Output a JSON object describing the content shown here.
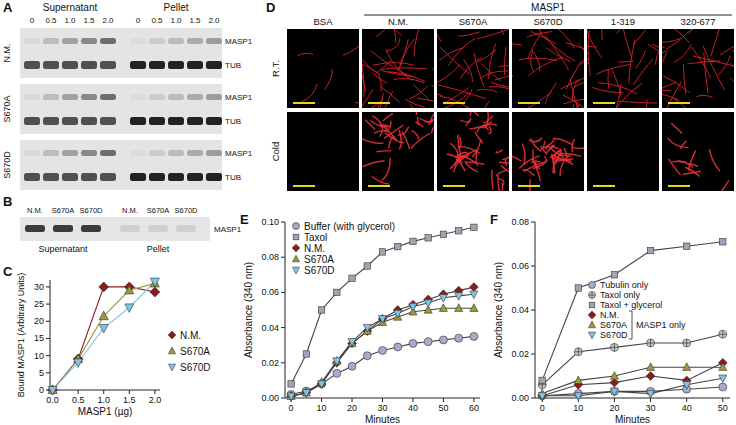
{
  "panels": {
    "A": {
      "label": "A",
      "groups": [
        "Supernatant",
        "Pellet"
      ],
      "amounts": [
        "0",
        "0.5",
        "1.0",
        "1.5",
        "2.0"
      ],
      "rows": [
        "N.M.",
        "S670A",
        "S670D"
      ],
      "bands": [
        "MASP1",
        "TUB"
      ]
    },
    "B": {
      "label": "B",
      "lanes": [
        "N.M.",
        "S670A",
        "S670D"
      ],
      "groups": [
        "Supernatant",
        "Pellet"
      ],
      "band": "MASP1"
    },
    "D": {
      "label": "D",
      "group": "MASP1",
      "columns": [
        "BSA",
        "N.M.",
        "S670A",
        "S670D",
        "1-319",
        "320-677"
      ],
      "rows": [
        "R.T.",
        "Cold"
      ]
    }
  },
  "chart_data": [
    {
      "type": "line",
      "title": "C",
      "xlabel": "MASP1 (µg)",
      "ylabel": "Bound MASP1 (Arbitrary Units)",
      "x": [
        0,
        0.5,
        1,
        1.5,
        2
      ],
      "xlim": [
        -0.05,
        2.1
      ],
      "xticks": [
        {
          "value": 0,
          "label": "0.0"
        },
        0.5,
        {
          "value": 1,
          "label": "1.0"
        },
        1.5,
        {
          "value": 2,
          "label": "2.0"
        }
      ],
      "ylim": [
        0,
        32
      ],
      "yticks": [
        0,
        5,
        10,
        15,
        20,
        25,
        30
      ],
      "legend": "right",
      "series": [
        {
          "name": "N.M.",
          "color": "#8b1c1c",
          "marker": "diamond",
          "values": [
            0,
            9,
            30,
            30,
            28.5
          ]
        },
        {
          "name": "S670A",
          "color": "#9b9b3c",
          "marker": "triangle",
          "values": [
            0,
            9,
            21.5,
            29,
            31
          ]
        },
        {
          "name": "S670D",
          "color": "#7cc6e6",
          "marker": "triangle-down",
          "values": [
            0,
            8,
            18,
            24,
            31.5
          ]
        }
      ]
    },
    {
      "type": "line",
      "title": "E",
      "xlabel": "Minutes",
      "ylabel": "Absorbance (340 nm)",
      "x": [
        0,
        5,
        10,
        15,
        20,
        25,
        30,
        35,
        40,
        45,
        50,
        55,
        60
      ],
      "xlim": [
        -2,
        62
      ],
      "xticks": [
        0,
        10,
        20,
        30,
        40,
        50,
        60
      ],
      "ylim": [
        0,
        0.1
      ],
      "yticks": [
        {
          "value": 0,
          "label": "0.00"
        },
        0.02,
        0.04,
        0.06,
        0.08,
        {
          "value": 0.1,
          "label": "0.10"
        }
      ],
      "legend": "upper left",
      "series": [
        {
          "name": "Buffer (with glycerol)",
          "color": "#a7aac8",
          "marker": "circle",
          "values": [
            0.002,
            0.004,
            0.008,
            0.014,
            0.018,
            0.024,
            0.027,
            0.029,
            0.031,
            0.032,
            0.033,
            0.034,
            0.035
          ]
        },
        {
          "name": "Taxol",
          "color": "#a2a2b6",
          "marker": "square",
          "values": [
            0.008,
            0.025,
            0.05,
            0.06,
            0.068,
            0.075,
            0.083,
            0.086,
            0.089,
            0.091,
            0.093,
            0.095,
            0.097
          ]
        },
        {
          "name": "N.M.",
          "color": "#8b1c1c",
          "marker": "diamond",
          "values": [
            0.001,
            0.003,
            0.008,
            0.02,
            0.031,
            0.038,
            0.045,
            0.05,
            0.053,
            0.056,
            0.059,
            0.061,
            0.063
          ]
        },
        {
          "name": "S670A",
          "color": "#9b9b3c",
          "marker": "triangle",
          "values": [
            0.001,
            0.003,
            0.009,
            0.021,
            0.031,
            0.038,
            0.043,
            0.046,
            0.049,
            0.05,
            0.051,
            0.051,
            0.051
          ]
        },
        {
          "name": "S670D",
          "color": "#7cc6e6",
          "marker": "triangle-down",
          "values": [
            0.001,
            0.003,
            0.008,
            0.021,
            0.032,
            0.04,
            0.045,
            0.048,
            0.052,
            0.054,
            0.057,
            0.058,
            0.059
          ]
        }
      ]
    },
    {
      "type": "line",
      "title": "F",
      "xlabel": "Minutes",
      "ylabel": "Absorbance (340 nm)",
      "x": [
        0,
        10,
        20,
        30,
        40,
        50
      ],
      "xlim": [
        -2,
        52
      ],
      "xticks": [
        0,
        10,
        20,
        30,
        40,
        50
      ],
      "ylim": [
        0,
        0.08
      ],
      "yticks": [
        {
          "value": 0,
          "label": "0.00"
        },
        0.02,
        0.04,
        0.06,
        0.08
      ],
      "legend": "center right",
      "annotations": [
        "MASP1 only"
      ],
      "series": [
        {
          "name": "Tubulin only",
          "color": "#a7aac8",
          "marker": "circle",
          "values": [
            0.001,
            0.002,
            0.003,
            0.003,
            0.004,
            0.005
          ]
        },
        {
          "name": "Taxol only",
          "color": "#c9c9cf",
          "marker": "circle-plus",
          "values": [
            0.006,
            0.021,
            0.023,
            0.025,
            0.025,
            0.029
          ]
        },
        {
          "name": "Taxol + glycerol",
          "color": "#a2a2b6",
          "marker": "square",
          "values": [
            0.008,
            0.05,
            0.056,
            0.067,
            0.069,
            0.071
          ]
        },
        {
          "name": "N.M.",
          "color": "#8b1c1c",
          "marker": "diamond",
          "values": [
            0.001,
            0.006,
            0.007,
            0.01,
            0.008,
            0.016
          ]
        },
        {
          "name": "S670A",
          "color": "#9b9b3c",
          "marker": "triangle",
          "values": [
            0.002,
            0.008,
            0.01,
            0.014,
            0.014,
            0.014
          ]
        },
        {
          "name": "S670D",
          "color": "#7cc6e6",
          "marker": "triangle-down",
          "values": [
            0.001,
            0.001,
            0.003,
            0.002,
            0.006,
            0.009
          ]
        }
      ]
    }
  ]
}
